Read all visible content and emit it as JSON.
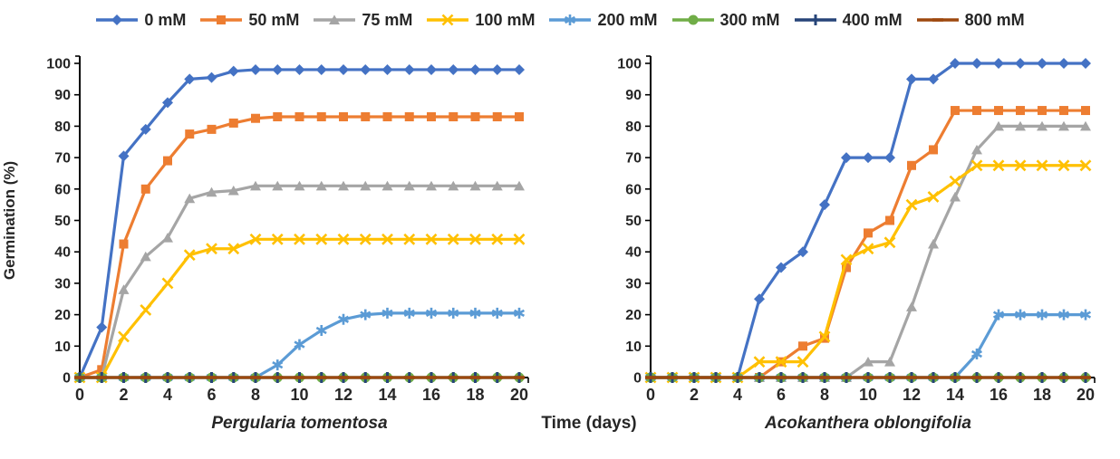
{
  "figure": {
    "x_axis_label": "Time (days)",
    "y_axis_label": "Germination (%)"
  },
  "legend": {
    "position": "top",
    "items": [
      "0 mM",
      "50 mM",
      "75 mM",
      "100 mM",
      "200 mM",
      "300 mM",
      "400 mM",
      "800 mM"
    ]
  },
  "chart_data": [
    {
      "type": "line",
      "title": "Pergularia tomentosa",
      "xlabel": "Time (days)",
      "ylabel": "Germination (%)",
      "x": [
        0,
        1,
        2,
        3,
        4,
        5,
        6,
        7,
        8,
        9,
        10,
        11,
        12,
        13,
        14,
        15,
        16,
        17,
        18,
        19,
        20
      ],
      "xticks": [
        0,
        2,
        4,
        6,
        8,
        10,
        12,
        14,
        16,
        18,
        20
      ],
      "yticks": [
        0,
        10,
        20,
        30,
        40,
        50,
        60,
        70,
        80,
        90,
        100
      ],
      "xlim": [
        0,
        20
      ],
      "ylim": [
        0,
        100
      ],
      "grid": false,
      "series": [
        {
          "name": "0 mM",
          "color": "#4472C4",
          "marker": "diamond",
          "values": [
            0,
            16,
            70.5,
            79,
            87.5,
            95,
            95.5,
            97.5,
            98,
            98,
            98,
            98,
            98,
            98,
            98,
            98,
            98,
            98,
            98,
            98,
            98
          ]
        },
        {
          "name": "50 mM",
          "color": "#ED7D31",
          "marker": "square",
          "values": [
            0,
            2.5,
            42.5,
            60,
            69,
            77.5,
            79,
            81,
            82.5,
            83,
            83,
            83,
            83,
            83,
            83,
            83,
            83,
            83,
            83,
            83,
            83
          ]
        },
        {
          "name": "75 mM",
          "color": "#A5A5A5",
          "marker": "triangle",
          "values": [
            0,
            0,
            28,
            38.5,
            44.5,
            57,
            59,
            59.5,
            61,
            61,
            61,
            61,
            61,
            61,
            61,
            61,
            61,
            61,
            61,
            61,
            61
          ]
        },
        {
          "name": "100 mM",
          "color": "#FFC000",
          "marker": "x",
          "values": [
            0,
            0,
            13,
            21.5,
            30,
            39,
            41,
            41,
            44,
            44,
            44,
            44,
            44,
            44,
            44,
            44,
            44,
            44,
            44,
            44,
            44
          ]
        },
        {
          "name": "200 mM",
          "color": "#5B9BD5",
          "marker": "asterisk",
          "values": [
            0,
            0,
            0,
            0,
            0,
            0,
            0,
            0,
            0,
            4,
            10.5,
            15,
            18.5,
            20,
            20.5,
            20.5,
            20.5,
            20.5,
            20.5,
            20.5,
            20.5
          ]
        },
        {
          "name": "300 mM",
          "color": "#70AD47",
          "marker": "circle",
          "values": [
            0,
            0,
            0,
            0,
            0,
            0,
            0,
            0,
            0,
            0,
            0,
            0,
            0,
            0,
            0,
            0,
            0,
            0,
            0,
            0,
            0
          ]
        },
        {
          "name": "400 mM",
          "color": "#264478",
          "marker": "plus",
          "values": [
            0,
            0,
            0,
            0,
            0,
            0,
            0,
            0,
            0,
            0,
            0,
            0,
            0,
            0,
            0,
            0,
            0,
            0,
            0,
            0,
            0
          ]
        },
        {
          "name": "800 mM",
          "color": "#9E480E",
          "marker": "dash",
          "values": [
            0,
            0,
            0,
            0,
            0,
            0,
            0,
            0,
            0,
            0,
            0,
            0,
            0,
            0,
            0,
            0,
            0,
            0,
            0,
            0,
            0
          ]
        }
      ]
    },
    {
      "type": "line",
      "title": "Acokanthera oblongifolia",
      "xlabel": "Time (days)",
      "ylabel": "Germination (%)",
      "x": [
        0,
        1,
        2,
        3,
        4,
        5,
        6,
        7,
        8,
        9,
        10,
        11,
        12,
        13,
        14,
        15,
        16,
        17,
        18,
        19,
        20
      ],
      "xticks": [
        0,
        2,
        4,
        6,
        8,
        10,
        12,
        14,
        16,
        18,
        20
      ],
      "yticks": [
        0,
        10,
        20,
        30,
        40,
        50,
        60,
        70,
        80,
        90,
        100
      ],
      "xlim": [
        0,
        20
      ],
      "ylim": [
        0,
        100
      ],
      "grid": false,
      "series": [
        {
          "name": "0 mM",
          "color": "#4472C4",
          "marker": "diamond",
          "values": [
            0,
            0,
            0,
            0,
            0,
            25,
            35,
            40,
            55,
            70,
            70,
            70,
            95,
            95,
            100,
            100,
            100,
            100,
            100,
            100,
            100
          ]
        },
        {
          "name": "50 mM",
          "color": "#ED7D31",
          "marker": "square",
          "values": [
            0,
            0,
            0,
            0,
            0,
            0,
            5,
            10,
            12.5,
            35,
            46,
            50,
            67.5,
            72.5,
            85,
            85,
            85,
            85,
            85,
            85,
            85
          ]
        },
        {
          "name": "75 mM",
          "color": "#A5A5A5",
          "marker": "triangle",
          "values": [
            0,
            0,
            0,
            0,
            0,
            0,
            0,
            0,
            0,
            0,
            5,
            5,
            22.5,
            42.5,
            57.5,
            72.5,
            80,
            80,
            80,
            80,
            80
          ]
        },
        {
          "name": "100 mM",
          "color": "#FFC000",
          "marker": "x",
          "values": [
            0,
            0,
            0,
            0,
            0,
            5,
            5,
            5,
            13,
            37.5,
            41,
            43,
            55,
            57.5,
            62.5,
            67.5,
            67.5,
            67.5,
            67.5,
            67.5,
            67.5
          ]
        },
        {
          "name": "200 mM",
          "color": "#5B9BD5",
          "marker": "asterisk",
          "values": [
            0,
            0,
            0,
            0,
            0,
            0,
            0,
            0,
            0,
            0,
            0,
            0,
            0,
            0,
            0,
            7.5,
            20,
            20,
            20,
            20,
            20
          ]
        },
        {
          "name": "300 mM",
          "color": "#70AD47",
          "marker": "circle",
          "values": [
            0,
            0,
            0,
            0,
            0,
            0,
            0,
            0,
            0,
            0,
            0,
            0,
            0,
            0,
            0,
            0,
            0,
            0,
            0,
            0,
            0
          ]
        },
        {
          "name": "400 mM",
          "color": "#264478",
          "marker": "plus",
          "values": [
            0,
            0,
            0,
            0,
            0,
            0,
            0,
            0,
            0,
            0,
            0,
            0,
            0,
            0,
            0,
            0,
            0,
            0,
            0,
            0,
            0
          ]
        },
        {
          "name": "800 mM",
          "color": "#9E480E",
          "marker": "dash",
          "values": [
            0,
            0,
            0,
            0,
            0,
            0,
            0,
            0,
            0,
            0,
            0,
            0,
            0,
            0,
            0,
            0,
            0,
            0,
            0,
            0,
            0
          ]
        }
      ]
    }
  ]
}
